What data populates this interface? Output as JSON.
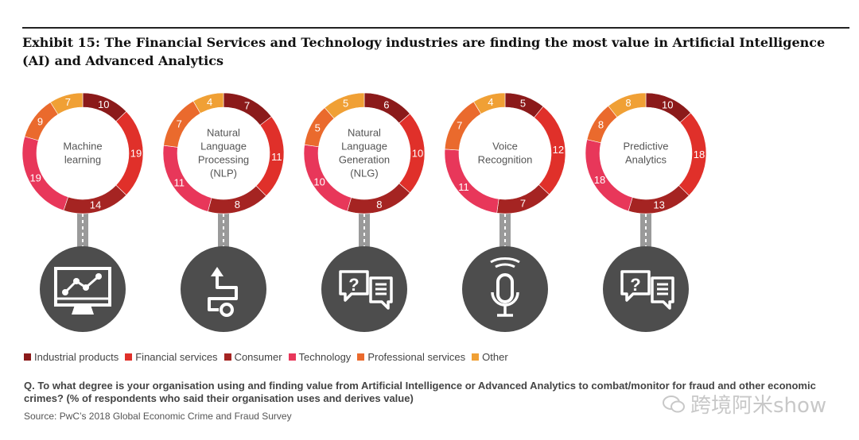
{
  "title": "Exhibit 15: The Financial Services and Technology industries are finding the most value in Artificial Intelligence (AI) and Advanced Analytics",
  "question": "Q. To what degree is your organisation using and finding value from Artificial Intelligence or Advanced Analytics to combat/monitor for fraud and other economic crimes? (% of respondents who said their organisation uses and derives value)",
  "source": "Source: PwC’s 2018 Global Economic Crime and Fraud Survey",
  "watermark": "跨境阿米show",
  "legend": [
    {
      "name": "Industrial products",
      "color": "#8b1a1a"
    },
    {
      "name": "Financial services",
      "color": "#e0302a"
    },
    {
      "name": "Consumer",
      "color": "#a52422"
    },
    {
      "name": "Technology",
      "color": "#e8375a"
    },
    {
      "name": "Professional services",
      "color": "#ea6a2d"
    },
    {
      "name": "Other",
      "color": "#f0a035"
    }
  ],
  "chart_data": {
    "type": "donut",
    "series_names": [
      "Industrial products",
      "Financial services",
      "Consumer",
      "Technology",
      "Professional services",
      "Other"
    ],
    "charts": [
      {
        "label": [
          "Machine",
          "learning"
        ],
        "values": [
          10,
          19,
          14,
          19,
          9,
          7
        ],
        "icon": "monitor-chart-icon"
      },
      {
        "label": [
          "Natural",
          "Language",
          "Processing",
          "(NLP)"
        ],
        "values": [
          7,
          11,
          8,
          11,
          7,
          4
        ],
        "icon": "flow-path-icon"
      },
      {
        "label": [
          "Natural",
          "Language",
          "Generation",
          "(NLG)"
        ],
        "values": [
          6,
          10,
          8,
          10,
          5,
          5
        ],
        "icon": "speech-bubbles-icon"
      },
      {
        "label": [
          "Voice",
          "Recognition"
        ],
        "values": [
          5,
          12,
          7,
          11,
          7,
          4
        ],
        "icon": "microphone-icon"
      },
      {
        "label": [
          "Predictive",
          "Analytics"
        ],
        "values": [
          10,
          18,
          13,
          18,
          8,
          8
        ],
        "icon": "speech-bubbles-icon"
      }
    ]
  }
}
